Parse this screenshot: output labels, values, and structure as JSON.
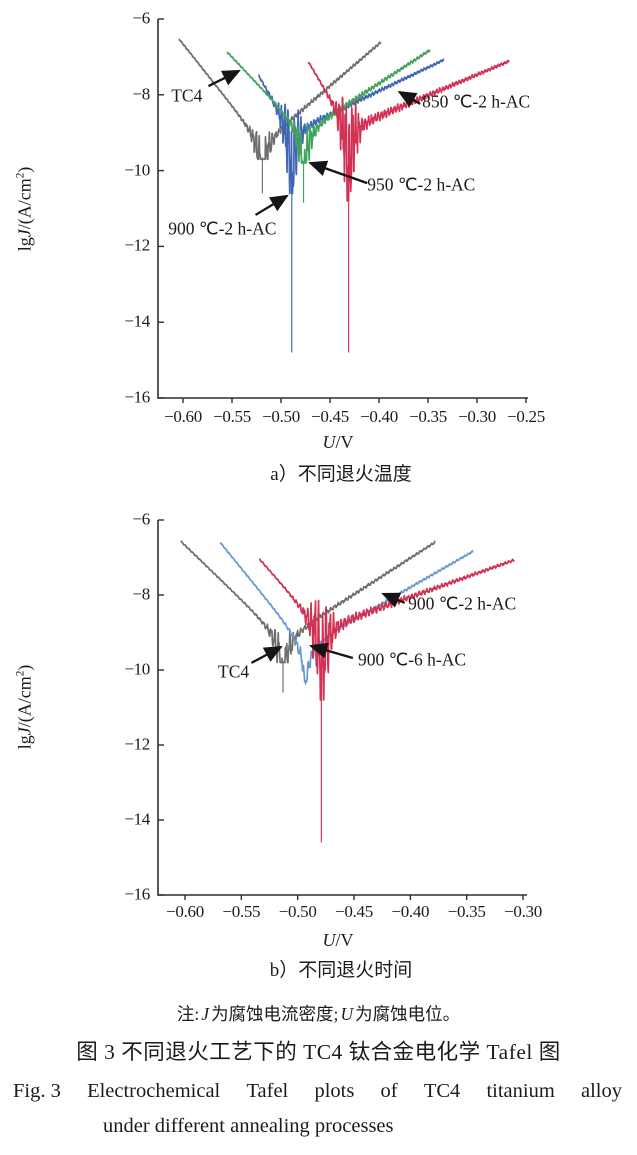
{
  "figure": {
    "note": {
      "prefix": "注:",
      "j": "J",
      "mid": "为腐蚀电流密度;",
      "u": "U",
      "end": "为腐蚀电位。"
    },
    "caption_zh": "图 3  不同退火工艺下的 TC4 钛合金电化学 Tafel 图",
    "caption_en_words": [
      "Fig. 3",
      "Electrochemical",
      "Tafel",
      "plots",
      "of",
      "TC4",
      "titanium",
      "alloy"
    ],
    "caption_en_line2": "under different annealing processes"
  },
  "chart_data": {
    "type": "line",
    "description": "Electrochemical Tafel plots (potentiodynamic polarization), lg of current density vs potential",
    "plots": [
      {
        "id": "a",
        "caption": "a）不同退火温度",
        "x_label": {
          "u": "U",
          "rest": "/V"
        },
        "y_label": {
          "p1": "lg",
          "j": "J",
          "p2": "/(A/cm",
          "sup": "2",
          "p3": ")"
        },
        "x_range": [
          -0.625,
          -0.243
        ],
        "y_range": [
          -16,
          -6
        ],
        "x_ticks": [
          {
            "v": -0.6,
            "label": "−0.60"
          },
          {
            "v": -0.55,
            "label": "−0.55"
          },
          {
            "v": -0.5,
            "label": "−0.50"
          },
          {
            "v": -0.45,
            "label": "−0.45"
          },
          {
            "v": -0.4,
            "label": "−0.40"
          },
          {
            "v": -0.35,
            "label": "−0.35"
          },
          {
            "v": -0.3,
            "label": "−0.30"
          },
          {
            "v": -0.25,
            "label": "−0.25"
          }
        ],
        "y_ticks": [
          {
            "lg": -6,
            "label": "−6"
          },
          {
            "lg": -8,
            "label": "−8"
          },
          {
            "lg": -10,
            "label": "−10"
          },
          {
            "lg": -12,
            "label": "−12"
          },
          {
            "lg": -14,
            "label": "−14"
          },
          {
            "lg": -16,
            "label": "−16"
          }
        ],
        "series": [
          {
            "name": "TC4",
            "color": "#6f6f6f",
            "v_start": -0.604,
            "lg_start": -6.53,
            "ecorr": -0.519,
            "v_end": -0.398,
            "lg_end": -6.61,
            "lg_vertex": -9.3,
            "lg_thick_bottom": -9.7,
            "lg_spike_bottom": -10.6,
            "noise_dip": 0.42,
            "noise_anodic": 0.04,
            "noise_cathodic": 0.05,
            "seed": 1
          },
          {
            "name": "900 ℃-2 h-AC",
            "color": "#3f66b5",
            "v_start": -0.523,
            "lg_start": -7.48,
            "ecorr": -0.489,
            "v_end": -0.334,
            "lg_end": -7.08,
            "lg_vertex": -9.0,
            "lg_thick_bottom": -10.6,
            "lg_spike_bottom": -14.8,
            "noise_dip": 0.7,
            "noise_anodic": 0.06,
            "noise_cathodic": 0.14,
            "seed": 2
          },
          {
            "name": "950 ℃-2 h-AC",
            "color": "#43a35d",
            "v_start": -0.555,
            "lg_start": -6.87,
            "ecorr": -0.477,
            "v_end": -0.348,
            "lg_end": -6.82,
            "lg_vertex": -9.0,
            "lg_thick_bottom": -9.8,
            "lg_spike_bottom": -10.85,
            "noise_dip": 0.35,
            "noise_anodic": 0.06,
            "noise_cathodic": 0.06,
            "seed": 3
          },
          {
            "name": "850 ℃-2 h-AC",
            "color": "#d13153",
            "v_start": -0.472,
            "lg_start": -7.13,
            "ecorr": -0.431,
            "v_end": -0.267,
            "lg_end": -7.11,
            "lg_vertex": -8.9,
            "lg_thick_bottom": -10.8,
            "lg_spike_bottom": -14.8,
            "noise_dip": 0.85,
            "noise_anodic": 0.1,
            "noise_cathodic": 0.12,
            "seed": 4
          }
        ],
        "annotations": [
          {
            "label": "TC4",
            "anchor": {
              "v": -0.612,
              "lg": -8.03
            },
            "arrow": {
              "from": {
                "v": -0.574,
                "lg": -7.77
              },
              "to": {
                "v": -0.543,
                "lg": -7.37
              }
            }
          },
          {
            "label": "850 ℃-2 h-AC",
            "anchor": {
              "v": -0.356,
              "lg": -8.19
            },
            "arrow": {
              "from": {
                "v": -0.358,
                "lg": -8.24
              },
              "to": {
                "v": -0.379,
                "lg": -7.93
              }
            }
          },
          {
            "label": "950 ℃-2 h-AC",
            "anchor": {
              "v": -0.412,
              "lg": -10.37
            },
            "arrow": {
              "from": {
                "v": -0.412,
                "lg": -10.33
              },
              "to": {
                "v": -0.47,
                "lg": -9.8
              }
            }
          },
          {
            "label": "900 ℃-2 h-AC",
            "anchor": {
              "v": -0.615,
              "lg": -11.53
            },
            "arrow": {
              "from": {
                "v": -0.526,
                "lg": -11.17
              },
              "to": {
                "v": -0.494,
                "lg": -10.67
              }
            }
          }
        ]
      },
      {
        "id": "b",
        "caption": "b）不同退火时间",
        "x_label": {
          "u": "U",
          "rest": "/V"
        },
        "y_label": {
          "p1": "lg",
          "j": "J",
          "p2": "/(A/cm",
          "sup": "2",
          "p3": ")"
        },
        "x_range": [
          -0.624,
          -0.296
        ],
        "y_range": [
          -16,
          -6
        ],
        "x_ticks": [
          {
            "v": -0.6,
            "label": "−0.60"
          },
          {
            "v": -0.55,
            "label": "−0.55"
          },
          {
            "v": -0.5,
            "label": "−0.50"
          },
          {
            "v": -0.45,
            "label": "−0.45"
          },
          {
            "v": -0.4,
            "label": "−0.40"
          },
          {
            "v": -0.35,
            "label": "−0.35"
          },
          {
            "v": -0.3,
            "label": "−0.30"
          }
        ],
        "y_ticks": [
          {
            "lg": -6,
            "label": "−6"
          },
          {
            "lg": -8,
            "label": "−8"
          },
          {
            "lg": -10,
            "label": "−10"
          },
          {
            "lg": -12,
            "label": "−12"
          },
          {
            "lg": -14,
            "label": "−14"
          },
          {
            "lg": -16,
            "label": "−16"
          }
        ],
        "series": [
          {
            "name": "TC4",
            "color": "#6f6f6f",
            "v_start": -0.604,
            "lg_start": -6.56,
            "ecorr": -0.513,
            "v_end": -0.378,
            "lg_end": -6.59,
            "lg_vertex": -9.2,
            "lg_thick_bottom": -9.8,
            "lg_spike_bottom": -10.6,
            "noise_dip": 0.38,
            "noise_anodic": 0.04,
            "noise_cathodic": 0.05,
            "seed": 5
          },
          {
            "name": "900 ℃-6 h-AC",
            "color": "#6899cf",
            "v_start": -0.569,
            "lg_start": -6.59,
            "ecorr": -0.493,
            "v_end": -0.344,
            "lg_end": -6.83,
            "lg_vertex": -9.4,
            "lg_thick_bottom": -10.32,
            "lg_spike_bottom": -10.4,
            "noise_dip": 0.1,
            "noise_anodic": 0.03,
            "noise_cathodic": 0.03,
            "seed": 6
          },
          {
            "name": "900 ℃-2 h-AC",
            "color": "#d13153",
            "v_start": -0.534,
            "lg_start": -7.04,
            "ecorr": -0.479,
            "v_end": -0.308,
            "lg_end": -7.07,
            "lg_vertex": -8.9,
            "lg_thick_bottom": -10.8,
            "lg_spike_bottom": -14.6,
            "noise_dip": 0.85,
            "noise_anodic": 0.1,
            "noise_cathodic": 0.12,
            "seed": 7
          }
        ],
        "annotations": [
          {
            "label": "900 ℃-2 h-AC",
            "anchor": {
              "v": -0.402,
              "lg": -8.25
            },
            "arrow": {
              "from": {
                "v": -0.405,
                "lg": -8.21
              },
              "to": {
                "v": -0.424,
                "lg": -7.97
              }
            }
          },
          {
            "label": "900 ℃-6 h-AC",
            "anchor": {
              "v": -0.4465,
              "lg": -9.72
            },
            "arrow": {
              "from": {
                "v": -0.451,
                "lg": -9.68
              },
              "to": {
                "v": -0.488,
                "lg": -9.36
              }
            }
          },
          {
            "label": "TC4",
            "anchor": {
              "v": -0.5707,
              "lg": -10.04
            },
            "arrow": {
              "from": {
                "v": -0.541,
                "lg": -9.81
              },
              "to": {
                "v": -0.515,
                "lg": -9.39
              }
            }
          }
        ]
      }
    ]
  }
}
